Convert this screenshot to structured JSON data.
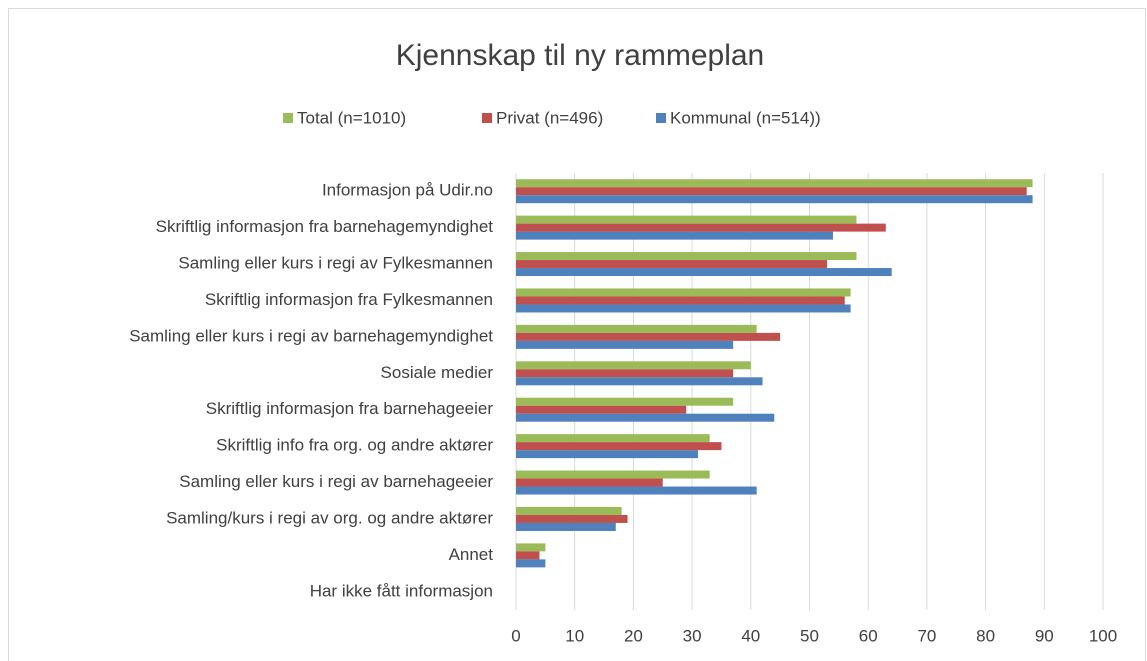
{
  "chart_data": {
    "type": "hbar",
    "title": "Kjennskap til ny rammeplan",
    "categories": [
      "Informasjon på Udir.no",
      "Skriftlig informasjon fra barnehagemyndighet",
      "Samling eller kurs i regi av Fylkesmannen",
      "Skriftlig informasjon fra Fylkesmannen",
      "Samling eller kurs i regi av barnehagemyndighet",
      "Sosiale medier",
      "Skriftlig informasjon fra barnehageeier",
      "Skriftlig info fra org. og andre aktører",
      "Samling eller kurs i regi av barnehageeier",
      "Samling/kurs i regi av org. og andre aktører",
      "Annet",
      "Har ikke fått informasjon"
    ],
    "series": [
      {
        "name": "Total (n=1010)",
        "color": "#9bbb59",
        "values": [
          88,
          58,
          58,
          57,
          41,
          40,
          37,
          33,
          33,
          18,
          5,
          0
        ]
      },
      {
        "name": "Privat (n=496)",
        "color": "#c0504d",
        "values": [
          87,
          63,
          53,
          56,
          45,
          37,
          29,
          35,
          25,
          19,
          4,
          0
        ]
      },
      {
        "name": "Kommunal (n=514))",
        "color": "#4f81bd",
        "values": [
          88,
          54,
          64,
          57,
          37,
          42,
          44,
          31,
          41,
          17,
          5,
          0
        ]
      }
    ],
    "xlim": [
      0,
      100
    ],
    "xticks": [
      0,
      10,
      20,
      30,
      40,
      50,
      60,
      70,
      80,
      90,
      100
    ],
    "grid": true,
    "legend": "top"
  }
}
